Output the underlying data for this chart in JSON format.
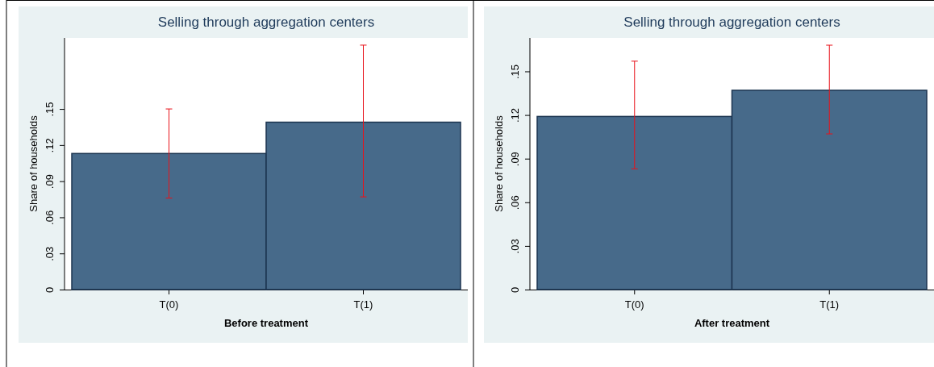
{
  "chart_data": [
    {
      "type": "bar",
      "title": "Selling through aggregation centers",
      "xlabel": "Before treatment",
      "ylabel": "Share of households",
      "categories": [
        "T(0)",
        "T(1)"
      ],
      "series": [
        {
          "color": "#476a8a",
          "values": [
            0.113,
            0.139
          ],
          "errors": [
            [
              0.076,
              0.15
            ],
            [
              0.077,
              0.203
            ]
          ]
        }
      ],
      "ylim": [
        0,
        0.209
      ],
      "yticks": [
        0,
        {
          "value": 0.03,
          "label": ".03"
        },
        {
          "value": 0.06,
          "label": ".06"
        },
        {
          "value": 0.09,
          "label": ".09"
        },
        {
          "value": 0.12,
          "label": ".12"
        },
        {
          "value": 0.15,
          "label": ".15"
        }
      ],
      "grid": false
    },
    {
      "type": "bar",
      "title": "Selling through aggregation centers",
      "xlabel": "After treatment",
      "ylabel": "Share of households",
      "categories": [
        "T(0)",
        "T(1)"
      ],
      "series": [
        {
          "color": "#476a8a",
          "values": [
            0.119,
            0.137
          ],
          "errors": [
            [
              0.083,
              0.157
            ],
            [
              0.107,
              0.168
            ]
          ]
        }
      ],
      "ylim": [
        0,
        0.173
      ],
      "yticks": [
        0,
        {
          "value": 0.03,
          "label": ".03"
        },
        {
          "value": 0.06,
          "label": ".06"
        },
        {
          "value": 0.09,
          "label": ".09"
        },
        {
          "value": 0.12,
          "label": ".12"
        },
        {
          "value": 0.15,
          "label": ".15"
        }
      ],
      "grid": false
    }
  ]
}
